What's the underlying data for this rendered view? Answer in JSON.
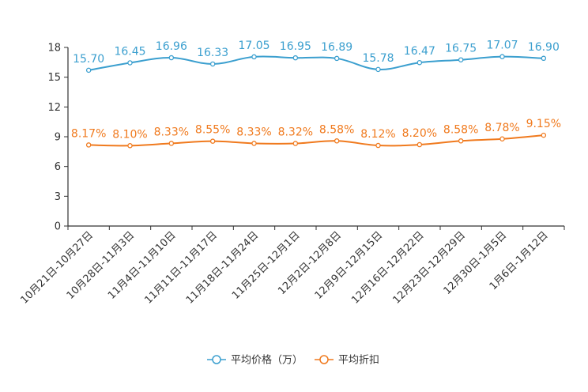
{
  "chart_data": {
    "type": "line",
    "title": "",
    "xlabel": "",
    "ylabel": "",
    "ylim": [
      0,
      18
    ],
    "yticks": [
      "0",
      "3",
      "6",
      "9",
      "12",
      "15",
      "18"
    ],
    "categories": [
      "10月21日-10月27日",
      "10月28日-11月3日",
      "11月4日-11月10日",
      "11月11日-11月17日",
      "11月18日-11月24日",
      "11月25日-12月1日",
      "12月2日-12月8日",
      "12月9日-12月15日",
      "12月16日-12月22日",
      "12月23日-12月29日",
      "12月30日-1月5日",
      "1月6日-1月12日"
    ],
    "series": [
      {
        "name": "平均价格（万）",
        "color": "#3b9fcf",
        "values": [
          15.7,
          16.45,
          16.96,
          16.33,
          17.05,
          16.95,
          16.89,
          15.78,
          16.47,
          16.75,
          17.07,
          16.9
        ],
        "labels": [
          "15.70",
          "16.45",
          "16.96",
          "16.33",
          "17.05",
          "16.95",
          "16.89",
          "15.78",
          "16.47",
          "16.75",
          "17.07",
          "16.90"
        ]
      },
      {
        "name": "平均折扣",
        "color": "#f07a1e",
        "values": [
          8.17,
          8.1,
          8.33,
          8.55,
          8.33,
          8.32,
          8.58,
          8.12,
          8.2,
          8.58,
          8.78,
          9.15
        ],
        "labels": [
          "8.17%",
          "8.10%",
          "8.33%",
          "8.55%",
          "8.33%",
          "8.32%",
          "8.58%",
          "8.12%",
          "8.20%",
          "8.58%",
          "8.78%",
          "9.15%"
        ]
      }
    ],
    "legend_position": "bottom-center",
    "grid": false
  }
}
